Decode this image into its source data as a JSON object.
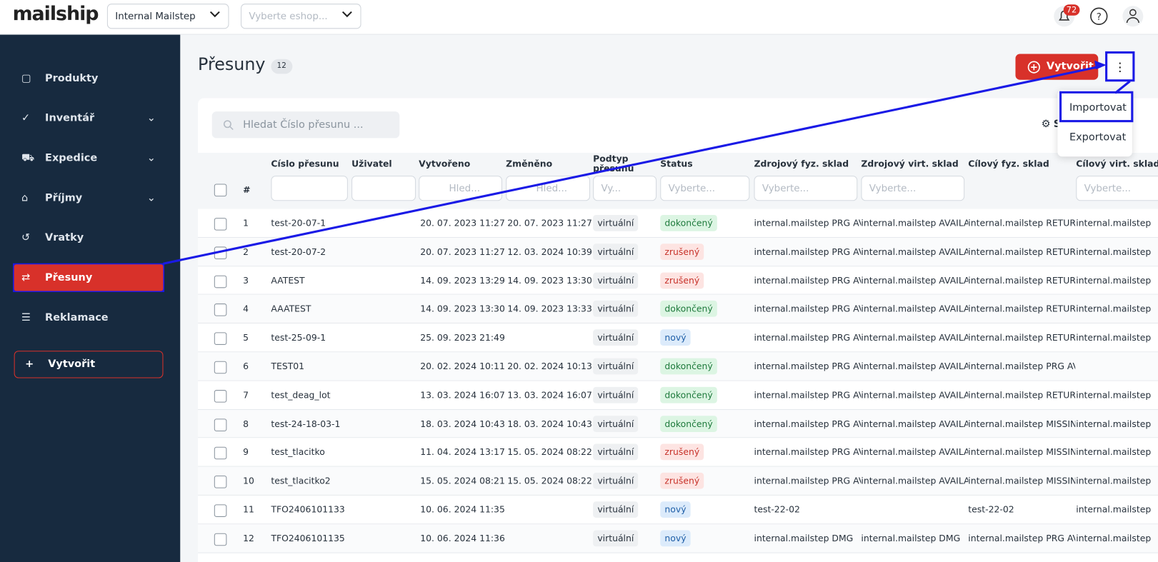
{
  "header": {
    "logo": "mailship",
    "company_select": "Internal Mailstep",
    "eshop_select": "Vyberte eshop...",
    "notifications": "72"
  },
  "sidebar": {
    "items": [
      "Produkty",
      "Inventář",
      "Expedice",
      "Příjmy",
      "Vratky",
      "Přesuny",
      "Reklamace"
    ],
    "active": 5,
    "expandable": [
      1,
      2,
      3
    ],
    "create": "Vytvořit"
  },
  "page": {
    "title": "Přesuny",
    "count": "12",
    "create_button": "Vytvořit",
    "menu": [
      "Importovat",
      "Exportovat"
    ],
    "search_placeholder": "Hledat Číslo přesunu ...",
    "settings": "Spr"
  },
  "table": {
    "columns": [
      "#",
      "Číslo přesunu",
      "Uživatel",
      "Vytvořeno",
      "Změněno",
      "Podtyp přesunu",
      "Status",
      "Zdrojový fyz. sklad",
      "Zdrojový virt. sklad",
      "Cílový fyz. sklad",
      "Cílový virt. sklad"
    ],
    "filters": [
      null,
      null,
      null,
      "Hled...",
      "Hled...",
      "Vy...",
      "Vyberte...",
      "Vyberte...",
      "Vyberte...",
      null,
      "Vyberte..."
    ],
    "rows": [
      [
        "1",
        "test-20-07-1",
        null,
        "20. 07. 2023 11:27",
        "20. 07. 2023 11:27",
        "virtuální",
        {
          "text": "dokončený",
          "color": "green"
        },
        "internal.mailstep PRG AVA",
        "internal.mailstep AVAILAB",
        "internal.mailstep RETURNS",
        "internal.mailstep"
      ],
      [
        "2",
        "test-20-07-2",
        null,
        "20. 07. 2023 11:27",
        "12. 03. 2024 10:39",
        "virtuální",
        {
          "text": "zrušený",
          "color": "red"
        },
        "internal.mailstep PRG AVA",
        "internal.mailstep AVAILAB",
        "internal.mailstep RETURNS",
        "internal.mailstep"
      ],
      [
        "3",
        "AATEST",
        null,
        "14. 09. 2023 13:29",
        "14. 09. 2023 13:30",
        "virtuální",
        {
          "text": "zrušený",
          "color": "red"
        },
        "internal.mailstep PRG AVA",
        "internal.mailstep AVAILAB",
        "internal.mailstep RETURNS",
        "internal.mailstep"
      ],
      [
        "4",
        "AAATEST",
        null,
        "14. 09. 2023 13:30",
        "14. 09. 2023 13:33",
        "virtuální",
        {
          "text": "dokončený",
          "color": "green"
        },
        "internal.mailstep PRG AVA",
        "internal.mailstep AVAILAB",
        "internal.mailstep RETURNS",
        "internal.mailstep"
      ],
      [
        "5",
        "test-25-09-1",
        null,
        "25. 09. 2023 21:49",
        null,
        "virtuální",
        {
          "text": "nový",
          "color": "blue"
        },
        "internal.mailstep PRG AVA",
        "internal.mailstep AVAILAB",
        "internal.mailstep RETURNS",
        "internal.mailstep"
      ],
      [
        "6",
        "TEST01",
        null,
        "20. 02. 2024 10:11",
        "20. 02. 2024 10:13",
        "virtuální",
        {
          "text": "dokončený",
          "color": "green"
        },
        "internal.mailstep PRG AVA",
        "internal.mailstep AVAILAB",
        "internal.mailstep PRG AVA",
        null
      ],
      [
        "7",
        "test_deag_lot",
        null,
        "13. 03. 2024 16:07",
        "13. 03. 2024 16:07",
        "virtuální",
        {
          "text": "dokončený",
          "color": "green"
        },
        "internal.mailstep PRG AVA",
        "internal.mailstep AVAILAB",
        "internal.mailstep RETURNS",
        "internal.mailstep"
      ],
      [
        "8",
        "test-24-18-03-1",
        null,
        "18. 03. 2024 10:43",
        "18. 03. 2024 10:43",
        "virtuální",
        {
          "text": "dokončený",
          "color": "green"
        },
        "internal.mailstep PRG AVA",
        "internal.mailstep AVAILAB",
        "internal.mailstep MISSING",
        "internal.mailstep"
      ],
      [
        "9",
        "test_tlacitko",
        null,
        "11. 04. 2024 13:17",
        "15. 05. 2024 08:22",
        "virtuální",
        {
          "text": "zrušený",
          "color": "red"
        },
        "internal.mailstep PRG AVA",
        "internal.mailstep AVAILAB",
        "internal.mailstep MISSING",
        "internal.mailstep"
      ],
      [
        "10",
        "test_tlacitko2",
        null,
        "15. 05. 2024 08:21",
        "15. 05. 2024 08:22",
        "virtuální",
        {
          "text": "zrušený",
          "color": "red"
        },
        "internal.mailstep PRG AVA",
        "internal.mailstep AVAILAB",
        "internal.mailstep MISSING",
        "internal.mailstep"
      ],
      [
        "11",
        "TFO2406101133",
        null,
        "10. 06. 2024 11:35",
        null,
        "virtuální",
        {
          "text": "nový",
          "color": "blue"
        },
        "test-22-02",
        null,
        "test-22-02",
        "internal.mailstep"
      ],
      [
        "12",
        "TFO2406101135",
        null,
        "10. 06. 2024 11:36",
        null,
        "virtuální",
        {
          "text": "nový",
          "color": "blue"
        },
        "internal.mailstep DMG",
        "internal.mailstep DMG",
        "internal.mailstep PRG AVA",
        "internal.mailstep"
      ]
    ]
  }
}
